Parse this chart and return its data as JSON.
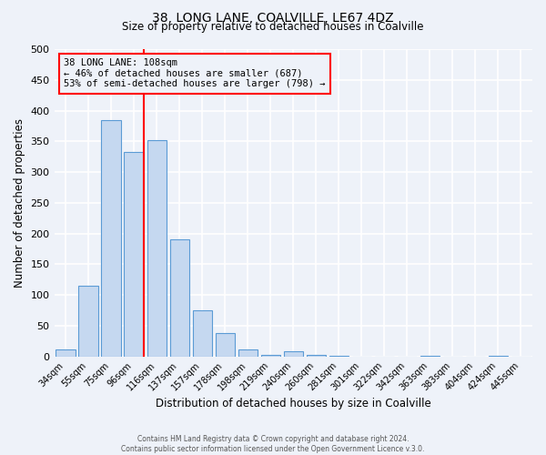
{
  "title": "38, LONG LANE, COALVILLE, LE67 4DZ",
  "subtitle": "Size of property relative to detached houses in Coalville",
  "xlabel": "Distribution of detached houses by size in Coalville",
  "ylabel": "Number of detached properties",
  "bar_labels": [
    "34sqm",
    "55sqm",
    "75sqm",
    "96sqm",
    "116sqm",
    "137sqm",
    "157sqm",
    "178sqm",
    "198sqm",
    "219sqm",
    "240sqm",
    "260sqm",
    "281sqm",
    "301sqm",
    "322sqm",
    "342sqm",
    "363sqm",
    "383sqm",
    "404sqm",
    "424sqm",
    "445sqm"
  ],
  "bar_values": [
    12,
    115,
    385,
    333,
    352,
    190,
    75,
    38,
    12,
    3,
    8,
    3,
    1,
    0,
    0,
    0,
    1,
    0,
    0,
    1,
    0
  ],
  "bar_color": "#c5d8f0",
  "bar_edge_color": "#5b9bd5",
  "vline_color": "red",
  "annotation_line1": "38 LONG LANE: 108sqm",
  "annotation_line2": "← 46% of detached houses are smaller (687)",
  "annotation_line3": "53% of semi-detached houses are larger (798) →",
  "annotation_box_color": "red",
  "ylim": [
    0,
    500
  ],
  "yticks": [
    0,
    50,
    100,
    150,
    200,
    250,
    300,
    350,
    400,
    450,
    500
  ],
  "footer1": "Contains HM Land Registry data © Crown copyright and database right 2024.",
  "footer2": "Contains public sector information licensed under the Open Government Licence v.3.0.",
  "bg_color": "#eef2f9",
  "grid_color": "#ffffff"
}
